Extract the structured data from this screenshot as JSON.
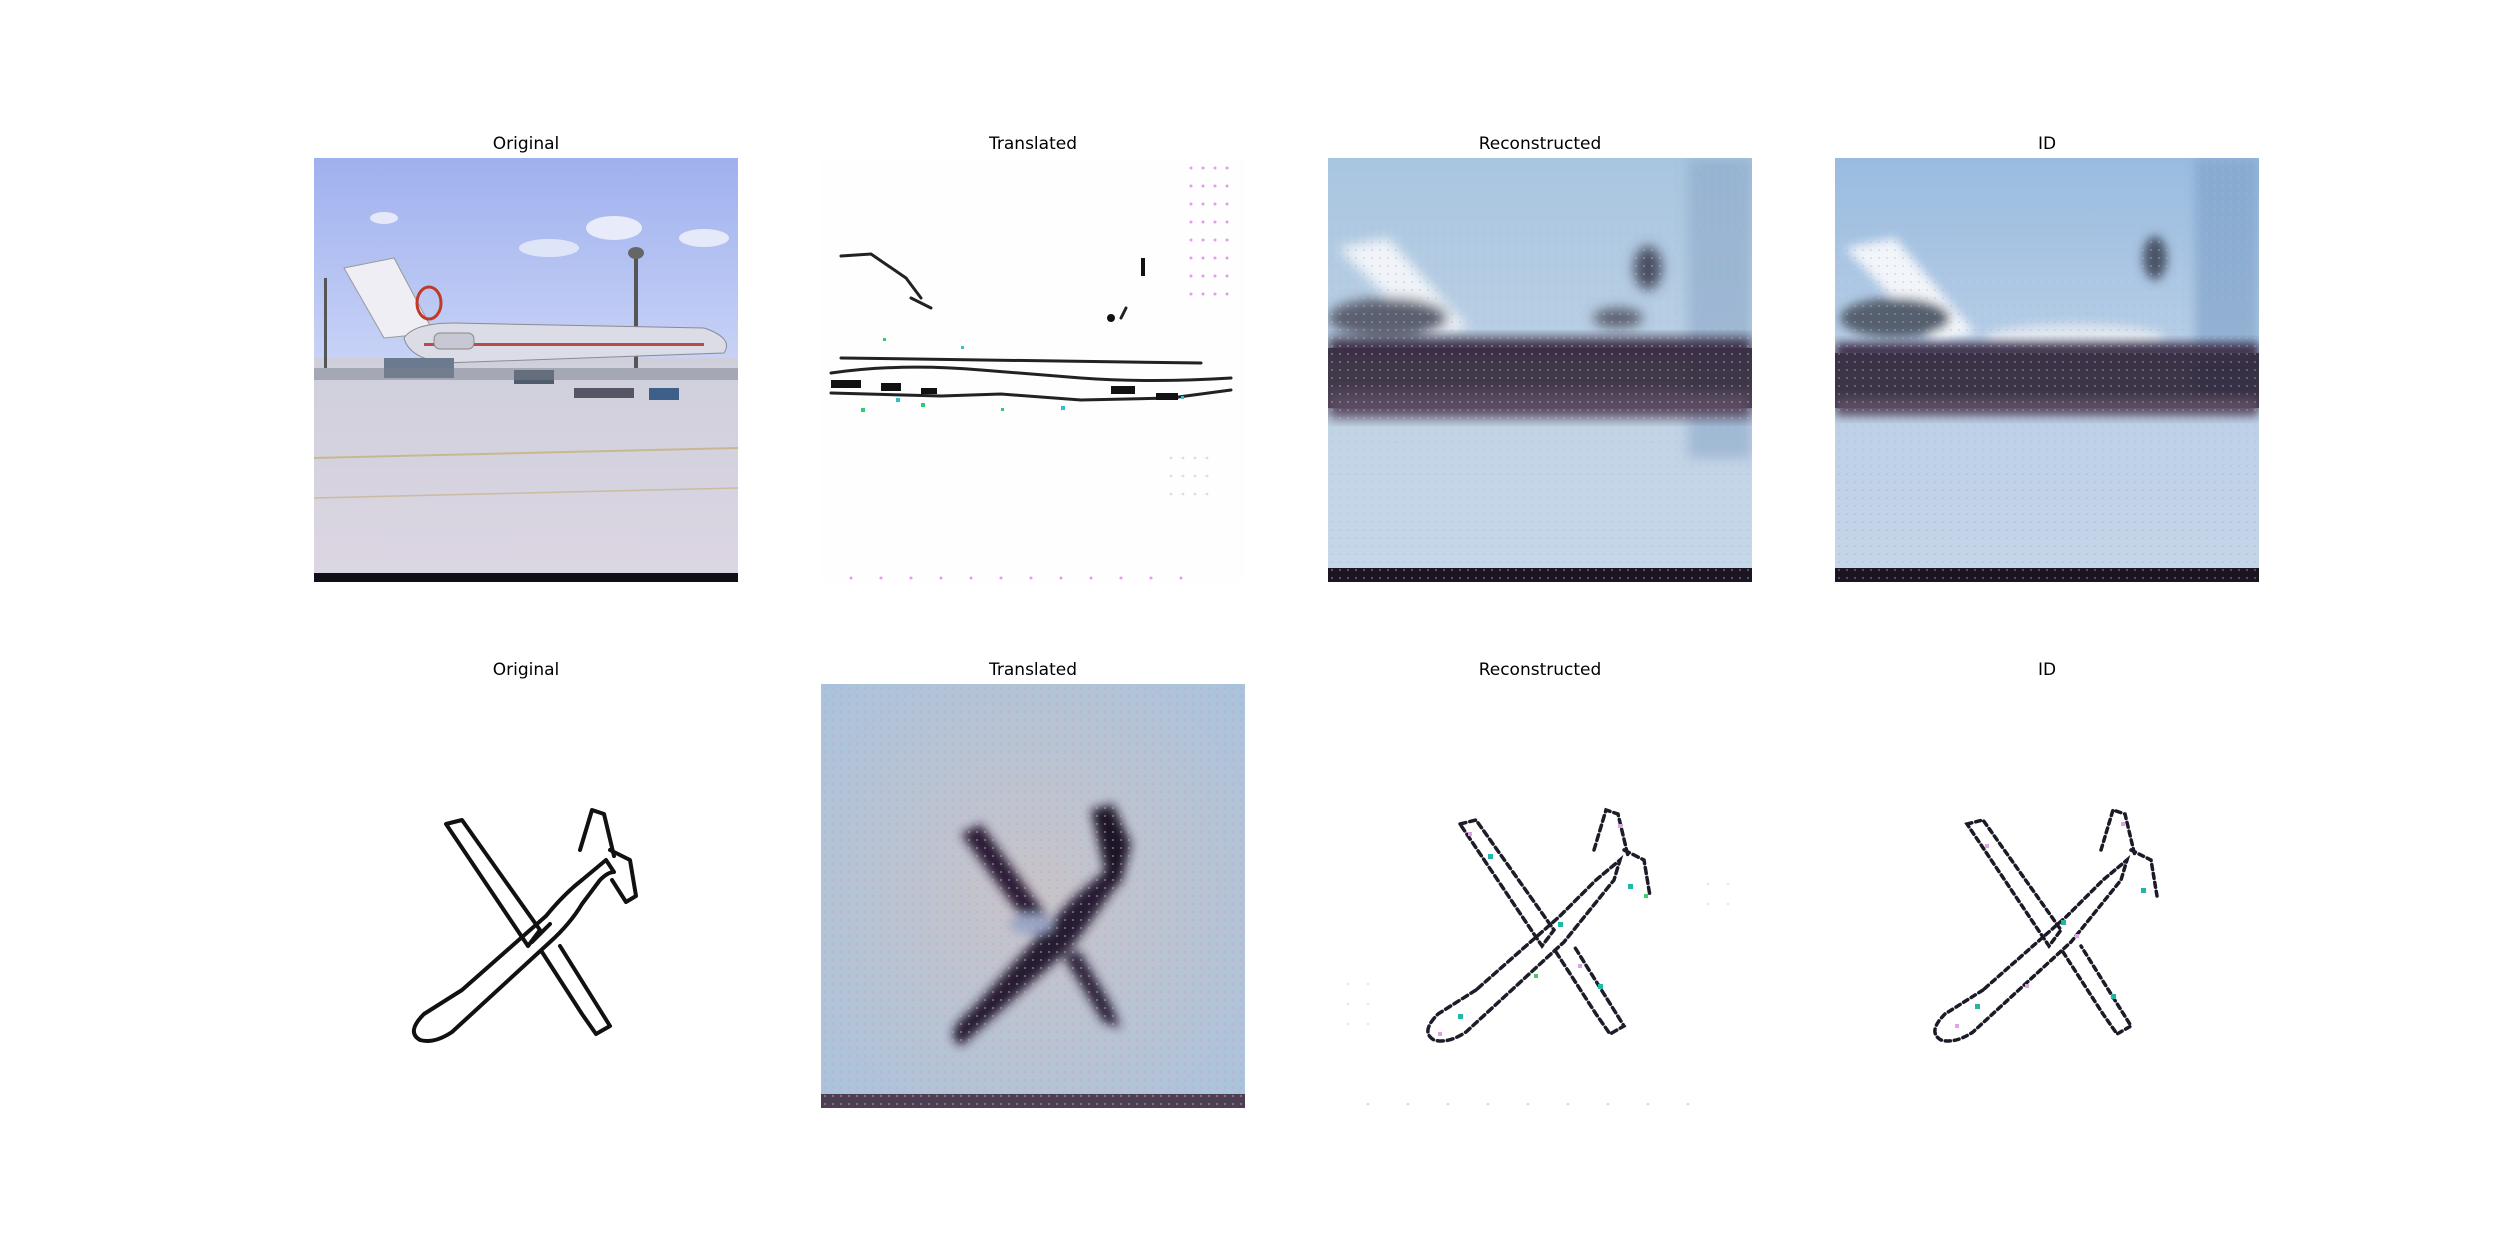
{
  "figure": {
    "rows": [
      {
        "panels": [
          {
            "title": "Original"
          },
          {
            "title": "Translated"
          },
          {
            "title": "Reconstructed"
          },
          {
            "title": "ID"
          }
        ]
      },
      {
        "panels": [
          {
            "title": "Original"
          },
          {
            "title": "Translated"
          },
          {
            "title": "Reconstructed"
          },
          {
            "title": "ID"
          }
        ]
      }
    ]
  }
}
